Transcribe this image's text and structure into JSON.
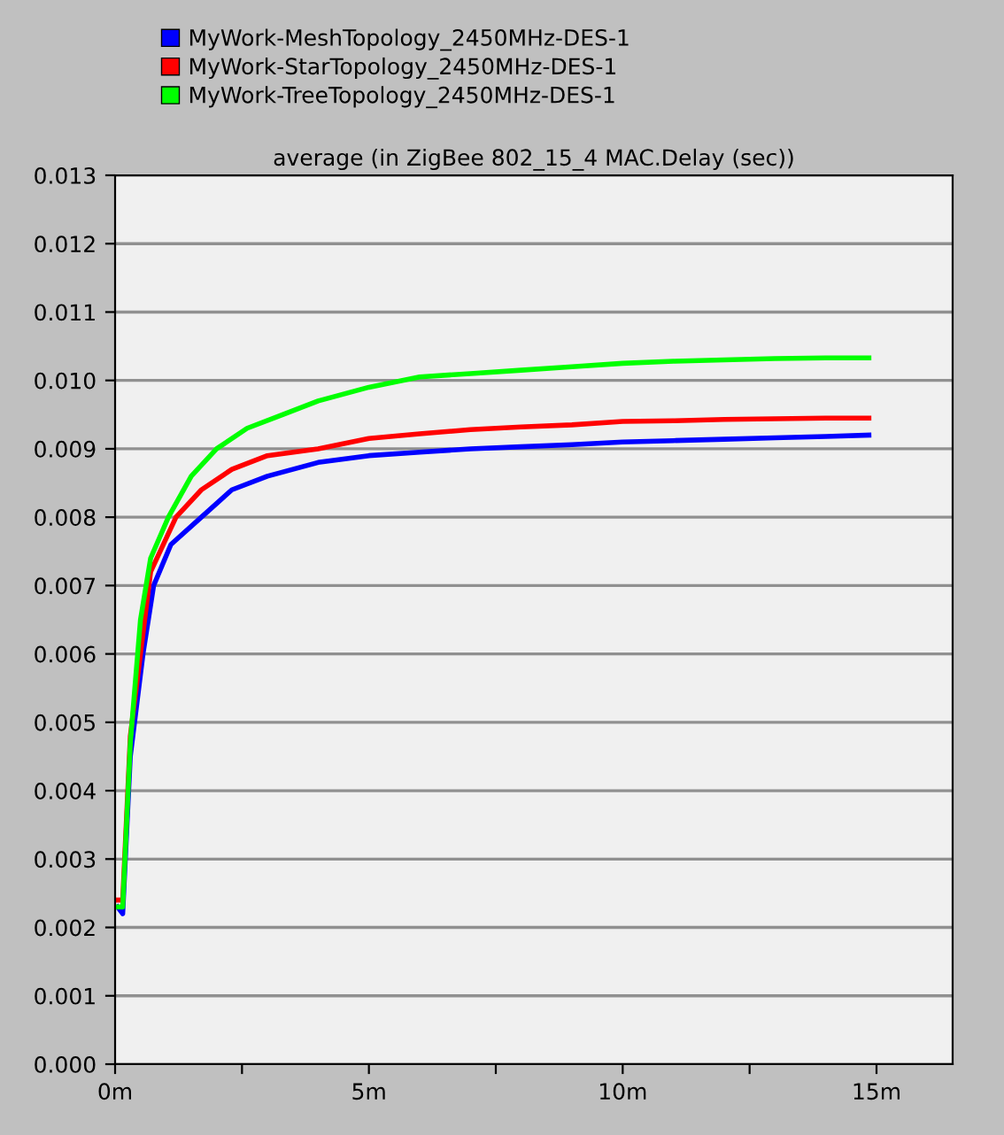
{
  "chart_data": {
    "type": "line",
    "title": "average (in ZigBee 802_15_4 MAC.Delay (sec))",
    "xlim": [
      0,
      16.5
    ],
    "xticks": [
      {
        "value": 0,
        "label": "0m"
      },
      {
        "value": 2.5,
        "label": null
      },
      {
        "value": 5,
        "label": "5m"
      },
      {
        "value": 7.5,
        "label": null
      },
      {
        "value": 10,
        "label": "10m"
      },
      {
        "value": 12.5,
        "label": null
      },
      {
        "value": 15,
        "label": "15m"
      }
    ],
    "ylim": [
      0,
      0.013
    ],
    "yticks": [
      {
        "value": 0,
        "label": "0.000"
      },
      {
        "value": 0.001,
        "label": "0.001"
      },
      {
        "value": 0.002,
        "label": "0.002"
      },
      {
        "value": 0.003,
        "label": "0.003"
      },
      {
        "value": 0.004,
        "label": "0.004"
      },
      {
        "value": 0.005,
        "label": "0.005"
      },
      {
        "value": 0.006,
        "label": "0.006"
      },
      {
        "value": 0.007,
        "label": "0.007"
      },
      {
        "value": 0.008,
        "label": "0.008"
      },
      {
        "value": 0.009,
        "label": "0.009"
      },
      {
        "value": 0.01,
        "label": "0.010"
      },
      {
        "value": 0.011,
        "label": "0.011"
      },
      {
        "value": 0.012,
        "label": "0.012"
      },
      {
        "value": 0.013,
        "label": "0.013"
      }
    ],
    "grid": "y",
    "legend": "top",
    "marker": "none",
    "line_style": "solid",
    "series": [
      {
        "name": "MyWork-MeshTopology_2450MHz-DES-1",
        "color": "#0000ff",
        "x": [
          0.05,
          0.15,
          0.3,
          0.55,
          0.76,
          1.1,
          1.7,
          2.3,
          3,
          4,
          5,
          6,
          7,
          8,
          9,
          10,
          11,
          12,
          13,
          14,
          14.85
        ],
        "values": [
          0.0023,
          0.0022,
          0.0045,
          0.006,
          0.007,
          0.0076,
          0.008,
          0.0084,
          0.0086,
          0.0088,
          0.0089,
          0.00895,
          0.009,
          0.00903,
          0.00906,
          0.0091,
          0.00912,
          0.00914,
          0.00916,
          0.00918,
          0.0092
        ]
      },
      {
        "name": "MyWork-StarTopology_2450MHz-DES-1",
        "color": "#ff0000",
        "x": [
          0.05,
          0.15,
          0.3,
          0.5,
          0.7,
          1.2,
          1.7,
          2.3,
          3,
          4,
          5,
          6,
          7,
          8,
          9,
          10,
          11,
          12,
          13,
          14,
          14.85
        ],
        "values": [
          0.0024,
          0.0024,
          0.0048,
          0.006,
          0.0072,
          0.008,
          0.0084,
          0.0087,
          0.0089,
          0.009,
          0.00915,
          0.00922,
          0.00928,
          0.00932,
          0.00935,
          0.0094,
          0.00941,
          0.00943,
          0.00944,
          0.00945,
          0.00945
        ]
      },
      {
        "name": "MyWork-TreeTopology_2450MHz-DES-1",
        "color": "#00ff00",
        "x": [
          0.05,
          0.15,
          0.3,
          0.5,
          0.7,
          1.05,
          1.5,
          2,
          2.6,
          3.3,
          4,
          5,
          6,
          7,
          8,
          9,
          10,
          11,
          12,
          13,
          14,
          14.85
        ],
        "values": [
          0.0023,
          0.0023,
          0.0047,
          0.0065,
          0.0074,
          0.008,
          0.0086,
          0.009,
          0.0093,
          0.0095,
          0.0097,
          0.0099,
          0.01005,
          0.0101,
          0.01015,
          0.0102,
          0.01025,
          0.01028,
          0.0103,
          0.01032,
          0.01033,
          0.01033
        ]
      }
    ]
  }
}
